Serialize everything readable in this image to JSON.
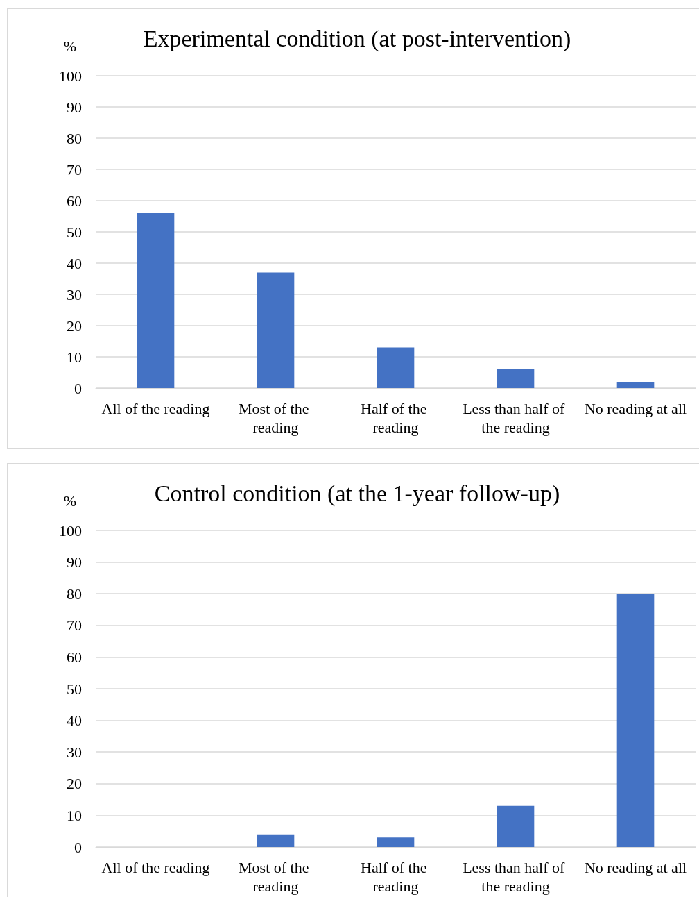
{
  "chart_data": [
    {
      "type": "bar",
      "title": "Experimental condition (at post-intervention)",
      "ylabel": "%",
      "categories": [
        "All of the reading",
        "Most of the reading",
        "Half of the reading",
        "Less than half of the reading",
        "No reading at all"
      ],
      "values": [
        56,
        37,
        13,
        6,
        2
      ],
      "color": "#4472c4",
      "ylim": [
        0,
        100
      ],
      "yticks": [
        0,
        10,
        20,
        30,
        40,
        50,
        60,
        70,
        80,
        90,
        100
      ],
      "grid": "y"
    },
    {
      "type": "bar",
      "title": "Control condition (at the 1-year follow-up)",
      "ylabel": "%",
      "categories": [
        "All of the reading",
        "Most of the reading",
        "Half of the reading",
        "Less than half of the reading",
        "No reading at all"
      ],
      "values": [
        0,
        4,
        3,
        13,
        80
      ],
      "color": "#4472c4",
      "ylim": [
        0,
        100
      ],
      "yticks": [
        0,
        10,
        20,
        30,
        40,
        50,
        60,
        70,
        80,
        90,
        100
      ],
      "grid": "y"
    }
  ]
}
